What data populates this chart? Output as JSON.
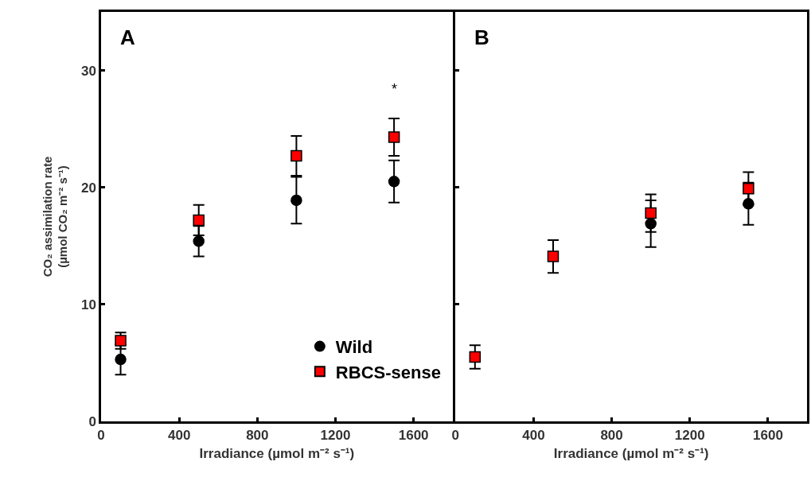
{
  "chart_data": [
    {
      "type": "scatter",
      "title": "A",
      "xlabel": "Irradiance (µmol m⁻² s⁻¹)",
      "ylabel": "CO₂ assimilation rate\n(µmol CO₂ m⁻² s⁻¹)",
      "x": [
        100,
        500,
        1000,
        1500
      ],
      "series": [
        {
          "name": "Wild",
          "color": "#000000",
          "marker": "circle",
          "values": [
            5.3,
            15.4,
            18.9,
            20.5
          ],
          "errors": [
            1.3,
            1.3,
            2.0,
            1.8
          ]
        },
        {
          "name": "RBCS-sense",
          "color": "#ff0000",
          "marker": "square",
          "values": [
            6.9,
            17.2,
            22.7,
            24.3
          ],
          "errors": [
            0.7,
            1.3,
            1.7,
            1.6
          ]
        }
      ],
      "annotations": [
        "*"
      ],
      "xlim": [
        0,
        1800
      ],
      "xticks": [
        0,
        400,
        800,
        1200,
        1600
      ],
      "ylim": [
        0,
        35
      ],
      "yticks": [
        0,
        10,
        20,
        30
      ],
      "legend": "bottom right"
    },
    {
      "type": "scatter",
      "title": "B",
      "xlabel": "Irradiance (µmol m⁻² s⁻¹)",
      "x": [
        100,
        500,
        1000,
        1500
      ],
      "series": [
        {
          "color": "#000000",
          "marker": "circle",
          "values": [
            null,
            null,
            16.9,
            18.6
          ],
          "errors": [
            null,
            null,
            2.0,
            1.8
          ]
        },
        {
          "color": "#ff0000",
          "marker": "square",
          "values": [
            5.5,
            14.1,
            17.8,
            19.9
          ],
          "errors": [
            1.0,
            1.4,
            1.6,
            1.4
          ]
        }
      ],
      "xlim": [
        0,
        1800
      ],
      "xticks": [
        0,
        400,
        800,
        1200,
        1600
      ],
      "ylim": [
        0,
        35
      ],
      "yticks": [
        0,
        10,
        20,
        30
      ],
      "tick_labels": "x"
    }
  ]
}
